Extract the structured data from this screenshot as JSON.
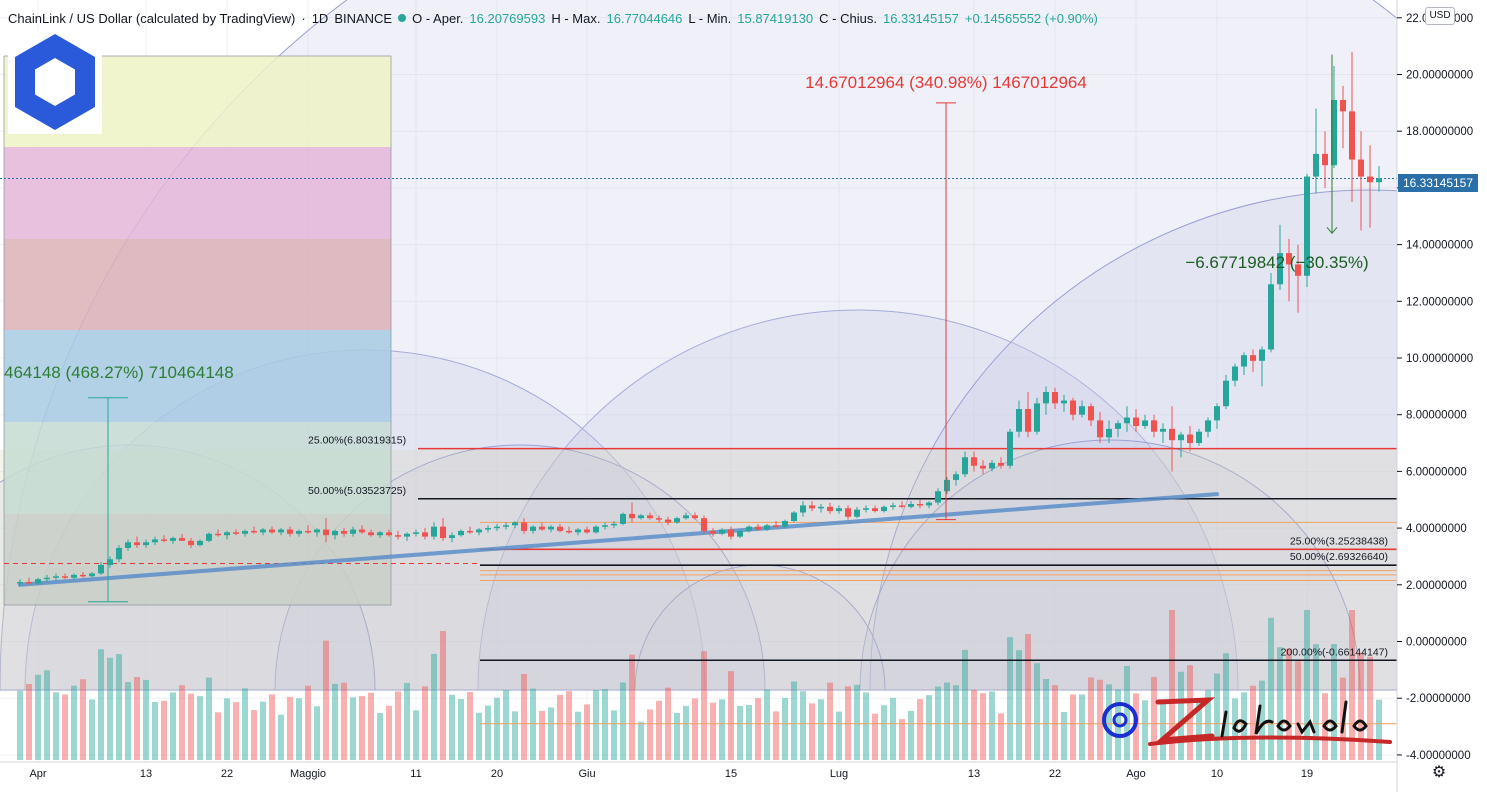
{
  "header": {
    "symbol": "ChainLink / US Dollar (calculated by TradingView)",
    "interval": "1D",
    "exchange": "BINANCE",
    "o_label": "O - Aper.",
    "o_value": "16.20769593",
    "h_label": "H - Max.",
    "h_value": "16.77044646",
    "l_label": "L - Min.",
    "l_value": "15.87419130",
    "c_label": "C - Chius.",
    "c_value": "16.33145157",
    "change": "+0.14565552 (+0.90%)"
  },
  "currency_button": "USD",
  "last_price_tag": "16.33145157",
  "signature": "Zio Romolo",
  "colors": {
    "up": "#26a69a",
    "down": "#ef5350",
    "trendline": "#5b8ec9",
    "price_tag": "#2a6fa8",
    "arc_fill": "#c5c9e6"
  },
  "chart_data": {
    "type": "candlestick",
    "x_tick_labels": [
      "Apr",
      "13",
      "22",
      "Maggio",
      "11",
      "20",
      "Giu",
      "15",
      "Lug",
      "13",
      "22",
      "Ago",
      "10",
      "19"
    ],
    "y_tick_labels": [
      "22.00000000",
      "20.00000000",
      "18.00000000",
      "16.00000000",
      "14.00000000",
      "12.00000000",
      "10.00000000",
      "8.00000000",
      "6.00000000",
      "4.00000000",
      "2.00000000",
      "0.00000000",
      "-2.00000000",
      "-4.00000000"
    ],
    "ylim": [
      -4,
      22.5
    ],
    "last_price": 16.33145157,
    "fib_levels": [
      {
        "label": "25.00%(6.80319315)",
        "value": 6.80319315,
        "color": "#e53935"
      },
      {
        "label": "50.00%(5.03523725)",
        "value": 5.03523725,
        "color": "#131722"
      },
      {
        "label": "25.00%(3.25238438)",
        "value": 3.25238438,
        "color": "#e53935"
      },
      {
        "label": "50.00%(2.69326640)",
        "value": 2.6932664,
        "color": "#131722"
      },
      {
        "label": "200.00%(-0.66144147)",
        "value": -0.66144147,
        "color": "#131722"
      }
    ],
    "annotations": [
      {
        "text": "14.67012964 (340.98%) 1467012964",
        "color": "#e53935"
      },
      {
        "text": "−6.67719842 (−30.35%)",
        "color": "#1b5e20"
      },
      {
        "text": "464148 (468.27%) 710464148",
        "color": "#2e7d32"
      }
    ],
    "trendline": {
      "from": {
        "day": 0,
        "value": 2.0
      },
      "to": {
        "day": 133,
        "value": 5.2
      }
    },
    "candles": [
      {
        "o": 2.05,
        "h": 2.2,
        "l": 1.95,
        "c": 2.1
      },
      {
        "o": 2.1,
        "h": 2.25,
        "l": 2.0,
        "c": 2.05
      },
      {
        "o": 2.05,
        "h": 2.25,
        "l": 2.0,
        "c": 2.2
      },
      {
        "o": 2.2,
        "h": 2.35,
        "l": 2.1,
        "c": 2.25
      },
      {
        "o": 2.25,
        "h": 2.4,
        "l": 2.15,
        "c": 2.3
      },
      {
        "o": 2.3,
        "h": 2.4,
        "l": 2.2,
        "c": 2.25
      },
      {
        "o": 2.25,
        "h": 2.4,
        "l": 2.2,
        "c": 2.35
      },
      {
        "o": 2.35,
        "h": 2.45,
        "l": 2.25,
        "c": 2.3
      },
      {
        "o": 2.3,
        "h": 2.45,
        "l": 2.25,
        "c": 2.4
      },
      {
        "o": 2.4,
        "h": 2.8,
        "l": 2.35,
        "c": 2.7
      },
      {
        "o": 2.7,
        "h": 3.0,
        "l": 2.6,
        "c": 2.9
      },
      {
        "o": 2.9,
        "h": 3.4,
        "l": 2.8,
        "c": 3.3
      },
      {
        "o": 3.3,
        "h": 3.6,
        "l": 3.2,
        "c": 3.5
      },
      {
        "o": 3.5,
        "h": 3.7,
        "l": 3.3,
        "c": 3.4
      },
      {
        "o": 3.4,
        "h": 3.6,
        "l": 3.3,
        "c": 3.5
      },
      {
        "o": 3.5,
        "h": 3.7,
        "l": 3.4,
        "c": 3.6
      },
      {
        "o": 3.6,
        "h": 3.75,
        "l": 3.5,
        "c": 3.55
      },
      {
        "o": 3.55,
        "h": 3.7,
        "l": 3.45,
        "c": 3.65
      },
      {
        "o": 3.65,
        "h": 3.8,
        "l": 3.55,
        "c": 3.55
      },
      {
        "o": 3.55,
        "h": 3.65,
        "l": 3.3,
        "c": 3.4
      },
      {
        "o": 3.4,
        "h": 3.6,
        "l": 3.35,
        "c": 3.55
      },
      {
        "o": 3.55,
        "h": 3.85,
        "l": 3.5,
        "c": 3.8
      },
      {
        "o": 3.8,
        "h": 3.95,
        "l": 3.7,
        "c": 3.75
      },
      {
        "o": 3.75,
        "h": 3.9,
        "l": 3.6,
        "c": 3.85
      },
      {
        "o": 3.85,
        "h": 3.95,
        "l": 3.75,
        "c": 3.8
      },
      {
        "o": 3.8,
        "h": 3.95,
        "l": 3.7,
        "c": 3.9
      },
      {
        "o": 3.9,
        "h": 4.05,
        "l": 3.8,
        "c": 3.85
      },
      {
        "o": 3.85,
        "h": 4.0,
        "l": 3.75,
        "c": 3.95
      },
      {
        "o": 3.95,
        "h": 4.05,
        "l": 3.8,
        "c": 3.85
      },
      {
        "o": 3.85,
        "h": 4.0,
        "l": 3.75,
        "c": 3.95
      },
      {
        "o": 3.95,
        "h": 4.05,
        "l": 3.7,
        "c": 3.8
      },
      {
        "o": 3.8,
        "h": 3.95,
        "l": 3.7,
        "c": 3.9
      },
      {
        "o": 3.9,
        "h": 4.1,
        "l": 3.8,
        "c": 3.85
      },
      {
        "o": 3.85,
        "h": 4.0,
        "l": 3.7,
        "c": 3.95
      },
      {
        "o": 3.95,
        "h": 4.35,
        "l": 3.5,
        "c": 3.75
      },
      {
        "o": 3.75,
        "h": 3.95,
        "l": 3.6,
        "c": 3.9
      },
      {
        "o": 3.9,
        "h": 4.0,
        "l": 3.7,
        "c": 3.8
      },
      {
        "o": 3.8,
        "h": 4.05,
        "l": 3.7,
        "c": 3.95
      },
      {
        "o": 3.95,
        "h": 4.1,
        "l": 3.8,
        "c": 3.85
      },
      {
        "o": 3.85,
        "h": 3.95,
        "l": 3.7,
        "c": 3.75
      },
      {
        "o": 3.75,
        "h": 3.9,
        "l": 3.65,
        "c": 3.85
      },
      {
        "o": 3.85,
        "h": 3.95,
        "l": 3.7,
        "c": 3.75
      },
      {
        "o": 3.75,
        "h": 3.9,
        "l": 3.6,
        "c": 3.7
      },
      {
        "o": 3.7,
        "h": 3.85,
        "l": 3.55,
        "c": 3.8
      },
      {
        "o": 3.8,
        "h": 3.95,
        "l": 3.7,
        "c": 3.85
      },
      {
        "o": 3.85,
        "h": 4.0,
        "l": 3.6,
        "c": 3.7
      },
      {
        "o": 3.7,
        "h": 4.2,
        "l": 3.6,
        "c": 4.05
      },
      {
        "o": 4.05,
        "h": 4.35,
        "l": 3.55,
        "c": 3.65
      },
      {
        "o": 3.65,
        "h": 3.85,
        "l": 3.5,
        "c": 3.75
      },
      {
        "o": 3.75,
        "h": 3.95,
        "l": 3.7,
        "c": 3.9
      },
      {
        "o": 3.9,
        "h": 4.05,
        "l": 3.8,
        "c": 3.85
      },
      {
        "o": 3.85,
        "h": 4.0,
        "l": 3.75,
        "c": 3.95
      },
      {
        "o": 3.95,
        "h": 4.1,
        "l": 3.85,
        "c": 4.0
      },
      {
        "o": 4.0,
        "h": 4.15,
        "l": 3.9,
        "c": 4.05
      },
      {
        "o": 4.05,
        "h": 4.2,
        "l": 3.95,
        "c": 4.1
      },
      {
        "o": 4.1,
        "h": 4.25,
        "l": 4.0,
        "c": 4.2
      },
      {
        "o": 4.2,
        "h": 4.35,
        "l": 3.8,
        "c": 3.9
      },
      {
        "o": 3.9,
        "h": 4.1,
        "l": 3.8,
        "c": 4.05
      },
      {
        "o": 4.05,
        "h": 4.2,
        "l": 3.9,
        "c": 3.95
      },
      {
        "o": 3.95,
        "h": 4.1,
        "l": 3.85,
        "c": 4.05
      },
      {
        "o": 4.05,
        "h": 4.15,
        "l": 3.85,
        "c": 3.9
      },
      {
        "o": 3.9,
        "h": 4.05,
        "l": 3.8,
        "c": 3.85
      },
      {
        "o": 3.85,
        "h": 4.0,
        "l": 3.75,
        "c": 3.95
      },
      {
        "o": 3.95,
        "h": 4.05,
        "l": 3.8,
        "c": 3.85
      },
      {
        "o": 3.85,
        "h": 4.1,
        "l": 3.8,
        "c": 4.05
      },
      {
        "o": 4.05,
        "h": 4.2,
        "l": 3.95,
        "c": 4.1
      },
      {
        "o": 4.1,
        "h": 4.25,
        "l": 4.0,
        "c": 4.15
      },
      {
        "o": 4.15,
        "h": 4.55,
        "l": 4.1,
        "c": 4.5
      },
      {
        "o": 4.5,
        "h": 4.9,
        "l": 4.2,
        "c": 4.35
      },
      {
        "o": 4.35,
        "h": 4.5,
        "l": 4.3,
        "c": 4.45
      },
      {
        "o": 4.45,
        "h": 4.55,
        "l": 4.3,
        "c": 4.35
      },
      {
        "o": 4.35,
        "h": 4.45,
        "l": 4.2,
        "c": 4.3
      },
      {
        "o": 4.3,
        "h": 4.4,
        "l": 4.1,
        "c": 4.2
      },
      {
        "o": 4.2,
        "h": 4.4,
        "l": 4.15,
        "c": 4.35
      },
      {
        "o": 4.35,
        "h": 4.55,
        "l": 4.3,
        "c": 4.45
      },
      {
        "o": 4.45,
        "h": 4.55,
        "l": 4.3,
        "c": 4.35
      },
      {
        "o": 4.35,
        "h": 4.45,
        "l": 3.8,
        "c": 3.9
      },
      {
        "o": 3.9,
        "h": 4.0,
        "l": 3.7,
        "c": 3.8
      },
      {
        "o": 3.8,
        "h": 4.0,
        "l": 3.75,
        "c": 3.95
      },
      {
        "o": 3.95,
        "h": 4.05,
        "l": 3.6,
        "c": 3.7
      },
      {
        "o": 3.7,
        "h": 3.95,
        "l": 3.65,
        "c": 3.9
      },
      {
        "o": 3.9,
        "h": 4.1,
        "l": 3.85,
        "c": 4.05
      },
      {
        "o": 4.05,
        "h": 4.15,
        "l": 3.9,
        "c": 3.95
      },
      {
        "o": 3.95,
        "h": 4.15,
        "l": 3.9,
        "c": 4.1
      },
      {
        "o": 4.1,
        "h": 4.25,
        "l": 4.0,
        "c": 4.05
      },
      {
        "o": 4.05,
        "h": 4.3,
        "l": 4.0,
        "c": 4.25
      },
      {
        "o": 4.25,
        "h": 4.6,
        "l": 4.2,
        "c": 4.55
      },
      {
        "o": 4.55,
        "h": 4.95,
        "l": 4.4,
        "c": 4.8
      },
      {
        "o": 4.8,
        "h": 4.95,
        "l": 4.6,
        "c": 4.7
      },
      {
        "o": 4.7,
        "h": 4.85,
        "l": 4.55,
        "c": 4.75
      },
      {
        "o": 4.75,
        "h": 4.9,
        "l": 4.5,
        "c": 4.6
      },
      {
        "o": 4.6,
        "h": 4.8,
        "l": 4.5,
        "c": 4.7
      },
      {
        "o": 4.7,
        "h": 4.8,
        "l": 4.3,
        "c": 4.4
      },
      {
        "o": 4.4,
        "h": 4.75,
        "l": 4.35,
        "c": 4.65
      },
      {
        "o": 4.65,
        "h": 4.8,
        "l": 4.55,
        "c": 4.7
      },
      {
        "o": 4.7,
        "h": 4.8,
        "l": 4.55,
        "c": 4.6
      },
      {
        "o": 4.6,
        "h": 4.8,
        "l": 4.55,
        "c": 4.75
      },
      {
        "o": 4.75,
        "h": 4.9,
        "l": 4.65,
        "c": 4.8
      },
      {
        "o": 4.8,
        "h": 4.95,
        "l": 4.7,
        "c": 4.75
      },
      {
        "o": 4.75,
        "h": 4.95,
        "l": 4.7,
        "c": 4.85
      },
      {
        "o": 4.85,
        "h": 5.0,
        "l": 4.7,
        "c": 4.8
      },
      {
        "o": 4.8,
        "h": 4.95,
        "l": 4.7,
        "c": 4.9
      },
      {
        "o": 4.9,
        "h": 5.4,
        "l": 4.8,
        "c": 5.3
      },
      {
        "o": 5.3,
        "h": 5.8,
        "l": 5.2,
        "c": 5.7
      },
      {
        "o": 5.7,
        "h": 6.0,
        "l": 5.5,
        "c": 5.9
      },
      {
        "o": 5.9,
        "h": 6.7,
        "l": 5.8,
        "c": 6.5
      },
      {
        "o": 6.5,
        "h": 6.7,
        "l": 6.0,
        "c": 6.2
      },
      {
        "o": 6.2,
        "h": 6.4,
        "l": 5.9,
        "c": 6.1
      },
      {
        "o": 6.1,
        "h": 6.4,
        "l": 6.0,
        "c": 6.3
      },
      {
        "o": 6.3,
        "h": 6.5,
        "l": 6.1,
        "c": 6.2
      },
      {
        "o": 6.2,
        "h": 7.5,
        "l": 6.1,
        "c": 7.4
      },
      {
        "o": 7.4,
        "h": 8.5,
        "l": 7.2,
        "c": 8.2
      },
      {
        "o": 8.2,
        "h": 8.8,
        "l": 7.2,
        "c": 7.4
      },
      {
        "o": 7.4,
        "h": 8.6,
        "l": 7.3,
        "c": 8.4
      },
      {
        "o": 8.4,
        "h": 9.0,
        "l": 8.0,
        "c": 8.8
      },
      {
        "o": 8.8,
        "h": 8.95,
        "l": 8.2,
        "c": 8.4
      },
      {
        "o": 8.4,
        "h": 8.7,
        "l": 8.1,
        "c": 8.5
      },
      {
        "o": 8.5,
        "h": 8.6,
        "l": 7.8,
        "c": 8.0
      },
      {
        "o": 8.0,
        "h": 8.5,
        "l": 7.9,
        "c": 8.3
      },
      {
        "o": 8.3,
        "h": 8.4,
        "l": 7.6,
        "c": 7.8
      },
      {
        "o": 7.8,
        "h": 8.1,
        "l": 7.0,
        "c": 7.2
      },
      {
        "o": 7.2,
        "h": 7.8,
        "l": 7.0,
        "c": 7.5
      },
      {
        "o": 7.5,
        "h": 7.8,
        "l": 7.2,
        "c": 7.7
      },
      {
        "o": 7.7,
        "h": 8.3,
        "l": 7.4,
        "c": 7.9
      },
      {
        "o": 7.9,
        "h": 8.2,
        "l": 7.4,
        "c": 7.6
      },
      {
        "o": 7.6,
        "h": 8.0,
        "l": 7.5,
        "c": 7.8
      },
      {
        "o": 7.8,
        "h": 8.0,
        "l": 7.2,
        "c": 7.4
      },
      {
        "o": 7.4,
        "h": 7.7,
        "l": 7.0,
        "c": 7.5
      },
      {
        "o": 7.5,
        "h": 8.3,
        "l": 6.0,
        "c": 7.1
      },
      {
        "o": 7.1,
        "h": 7.4,
        "l": 6.5,
        "c": 7.3
      },
      {
        "o": 7.3,
        "h": 7.6,
        "l": 6.7,
        "c": 7.0
      },
      {
        "o": 7.0,
        "h": 7.5,
        "l": 6.9,
        "c": 7.4
      },
      {
        "o": 7.4,
        "h": 7.9,
        "l": 7.2,
        "c": 7.8
      },
      {
        "o": 7.8,
        "h": 8.4,
        "l": 7.5,
        "c": 8.3
      },
      {
        "o": 8.3,
        "h": 9.4,
        "l": 8.2,
        "c": 9.2
      },
      {
        "o": 9.2,
        "h": 9.8,
        "l": 9.0,
        "c": 9.7
      },
      {
        "o": 9.7,
        "h": 10.2,
        "l": 9.4,
        "c": 10.1
      },
      {
        "o": 10.1,
        "h": 10.3,
        "l": 9.5,
        "c": 9.9
      },
      {
        "o": 9.9,
        "h": 10.4,
        "l": 9.0,
        "c": 10.3
      },
      {
        "o": 10.3,
        "h": 13.0,
        "l": 10.2,
        "c": 12.6
      },
      {
        "o": 12.6,
        "h": 14.7,
        "l": 12.4,
        "c": 13.7
      },
      {
        "o": 13.7,
        "h": 14.2,
        "l": 12.0,
        "c": 13.3
      },
      {
        "o": 13.3,
        "h": 14.0,
        "l": 11.6,
        "c": 12.9
      },
      {
        "o": 12.9,
        "h": 16.5,
        "l": 12.5,
        "c": 16.4
      },
      {
        "o": 16.4,
        "h": 18.8,
        "l": 15.8,
        "c": 17.2
      },
      {
        "o": 17.2,
        "h": 18.0,
        "l": 16.0,
        "c": 16.8
      },
      {
        "o": 16.8,
        "h": 20.3,
        "l": 16.7,
        "c": 19.1
      },
      {
        "o": 19.1,
        "h": 19.6,
        "l": 17.4,
        "c": 18.7
      },
      {
        "o": 18.7,
        "h": 20.8,
        "l": 15.5,
        "c": 17.0
      },
      {
        "o": 17.0,
        "h": 18.0,
        "l": 14.5,
        "c": 16.4
      },
      {
        "o": 16.4,
        "h": 17.5,
        "l": 14.6,
        "c": 16.2
      },
      {
        "o": 16.2,
        "h": 16.77,
        "l": 15.87,
        "c": 16.33
      }
    ]
  }
}
